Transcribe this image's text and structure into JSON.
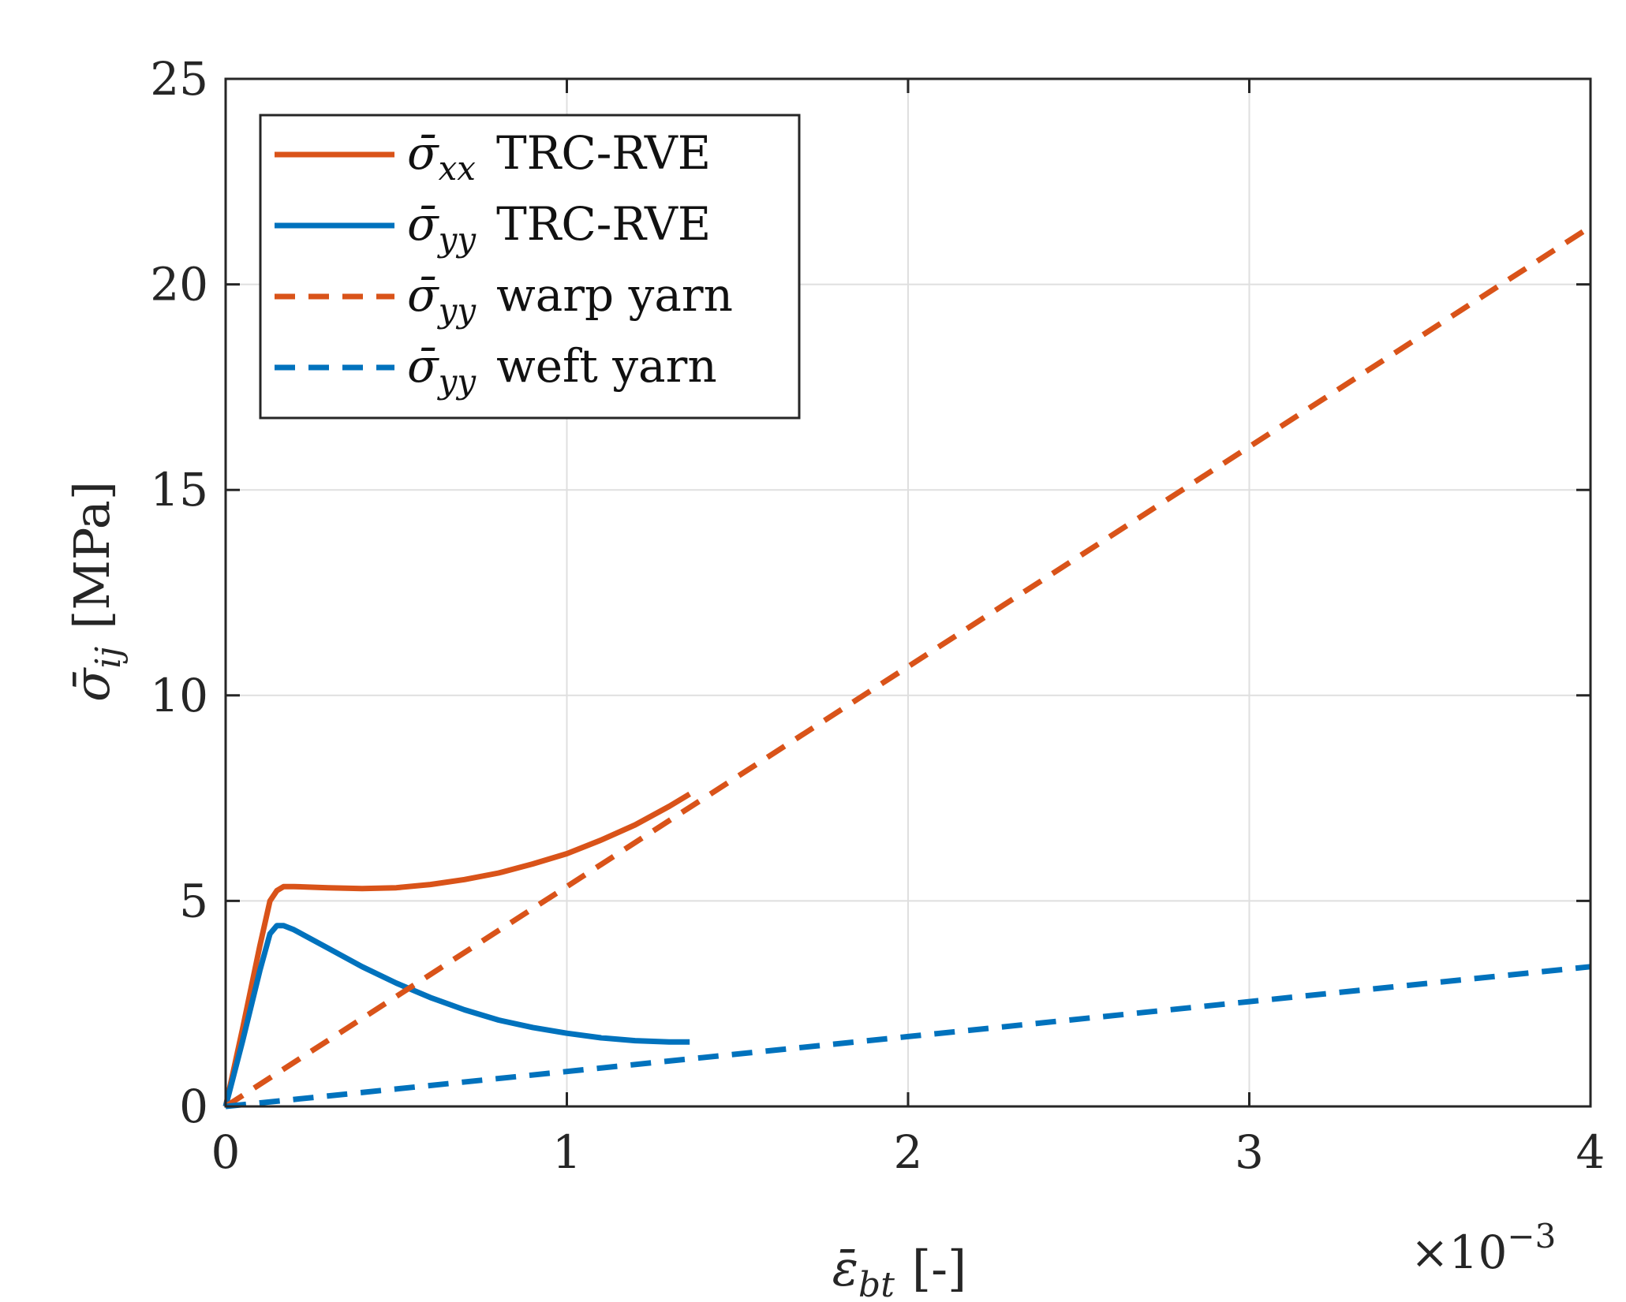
{
  "chart_data": {
    "type": "line",
    "title": "",
    "xlabel": {
      "symbol": "ε̄",
      "sub": "bt",
      "unit": "[-]"
    },
    "ylabel": {
      "symbol": "σ̄",
      "sub": "ij",
      "unit": "[MPa]"
    },
    "xlim": [
      0,
      0.004
    ],
    "ylim": [
      0,
      25
    ],
    "x_ticks": [
      0,
      0.001,
      0.002,
      0.003,
      0.004
    ],
    "x_tick_labels": [
      "0",
      "1",
      "2",
      "3",
      "4"
    ],
    "y_ticks": [
      0,
      5,
      10,
      15,
      20,
      25
    ],
    "y_tick_labels": [
      "0",
      "5",
      "10",
      "15",
      "20",
      "25"
    ],
    "x_exponent": {
      "prefix": "×10",
      "power": "−3"
    },
    "grid": true,
    "legend_position": "top-left",
    "colors": {
      "orange": "#D95319",
      "blue": "#0072BD"
    },
    "series": [
      {
        "name": "σ̄xx TRC-RVE",
        "symbol": "σ̄",
        "sub": "xx",
        "text": "TRC-RVE",
        "color": "#D95319",
        "style": "solid",
        "x": [
          0,
          5e-05,
          0.0001,
          0.00013,
          0.00015,
          0.00017,
          0.0002,
          0.0003,
          0.0004,
          0.0005,
          0.0006,
          0.0007,
          0.0008,
          0.0009,
          0.001,
          0.0011,
          0.0012,
          0.0013,
          0.00136
        ],
        "y": [
          0,
          1.9,
          3.9,
          5.0,
          5.25,
          5.35,
          5.35,
          5.32,
          5.3,
          5.32,
          5.4,
          5.52,
          5.68,
          5.9,
          6.15,
          6.48,
          6.85,
          7.3,
          7.6
        ]
      },
      {
        "name": "σ̄yy TRC-RVE",
        "symbol": "σ̄",
        "sub": "yy",
        "text": "TRC-RVE",
        "color": "#0072BD",
        "style": "solid",
        "x": [
          0,
          5e-05,
          0.0001,
          0.00013,
          0.00015,
          0.00017,
          0.0002,
          0.0003,
          0.0004,
          0.0005,
          0.0006,
          0.0007,
          0.0008,
          0.0009,
          0.001,
          0.0011,
          0.0012,
          0.0013,
          0.00136
        ],
        "y": [
          0,
          1.6,
          3.3,
          4.2,
          4.4,
          4.4,
          4.3,
          3.85,
          3.4,
          3.0,
          2.65,
          2.35,
          2.1,
          1.92,
          1.78,
          1.67,
          1.6,
          1.57,
          1.57
        ]
      },
      {
        "name": "σ̄yy warp yarn",
        "symbol": "σ̄",
        "sub": "yy",
        "text": "warp yarn",
        "color": "#D95319",
        "style": "dashed",
        "x": [
          0,
          0.001,
          0.002,
          0.003,
          0.004
        ],
        "y": [
          0,
          5.35,
          10.7,
          16.05,
          21.4
        ]
      },
      {
        "name": "σ̄yy weft yarn",
        "symbol": "σ̄",
        "sub": "yy",
        "text": "weft yarn",
        "color": "#0072BD",
        "style": "dashed",
        "x": [
          0,
          0.001,
          0.002,
          0.003,
          0.004
        ],
        "y": [
          0,
          0.85,
          1.7,
          2.55,
          3.4
        ]
      }
    ]
  }
}
